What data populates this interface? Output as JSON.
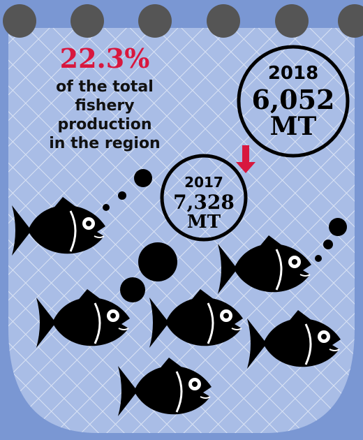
{
  "headline": {
    "percent": "22.3%",
    "lines": [
      "of the total",
      "fishery",
      "production",
      "in the region"
    ]
  },
  "callouts": [
    {
      "year": "2018",
      "value": "6,052",
      "unit": "MT"
    },
    {
      "year": "2017",
      "value": "7,328",
      "unit": "MT"
    }
  ]
}
